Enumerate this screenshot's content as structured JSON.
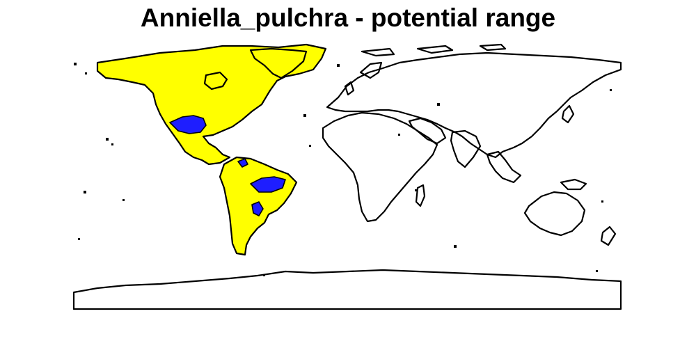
{
  "title": "Anniella_pulchra - potential range",
  "colors": {
    "background": "#ffffff",
    "outline": "#000000",
    "potential_range": "#ffff00",
    "core_range": "#1e1eff"
  }
}
